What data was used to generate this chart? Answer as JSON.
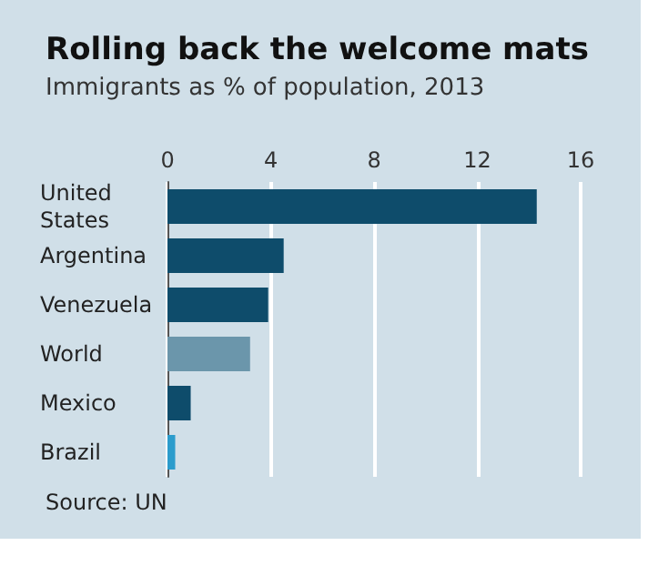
{
  "chart_data": {
    "type": "bar",
    "orientation": "horizontal",
    "title": "Rolling back the welcome mats",
    "subtitle": "Immigrants as % of population, 2013",
    "categories": [
      "United States",
      "Argentina",
      "Venezuela",
      "World",
      "Mexico",
      "Brazil"
    ],
    "values": [
      14.3,
      4.5,
      3.9,
      3.2,
      0.9,
      0.3
    ],
    "colors": [
      "#0e4c6b",
      "#0e4c6b",
      "#0e4c6b",
      "#6b96ab",
      "#0e4c6b",
      "#2b9ccc"
    ],
    "xlim": [
      0,
      16
    ],
    "xticks": [
      0,
      4,
      8,
      12,
      16
    ],
    "grid": "x",
    "annotations": [
      "Source: UN"
    ]
  }
}
